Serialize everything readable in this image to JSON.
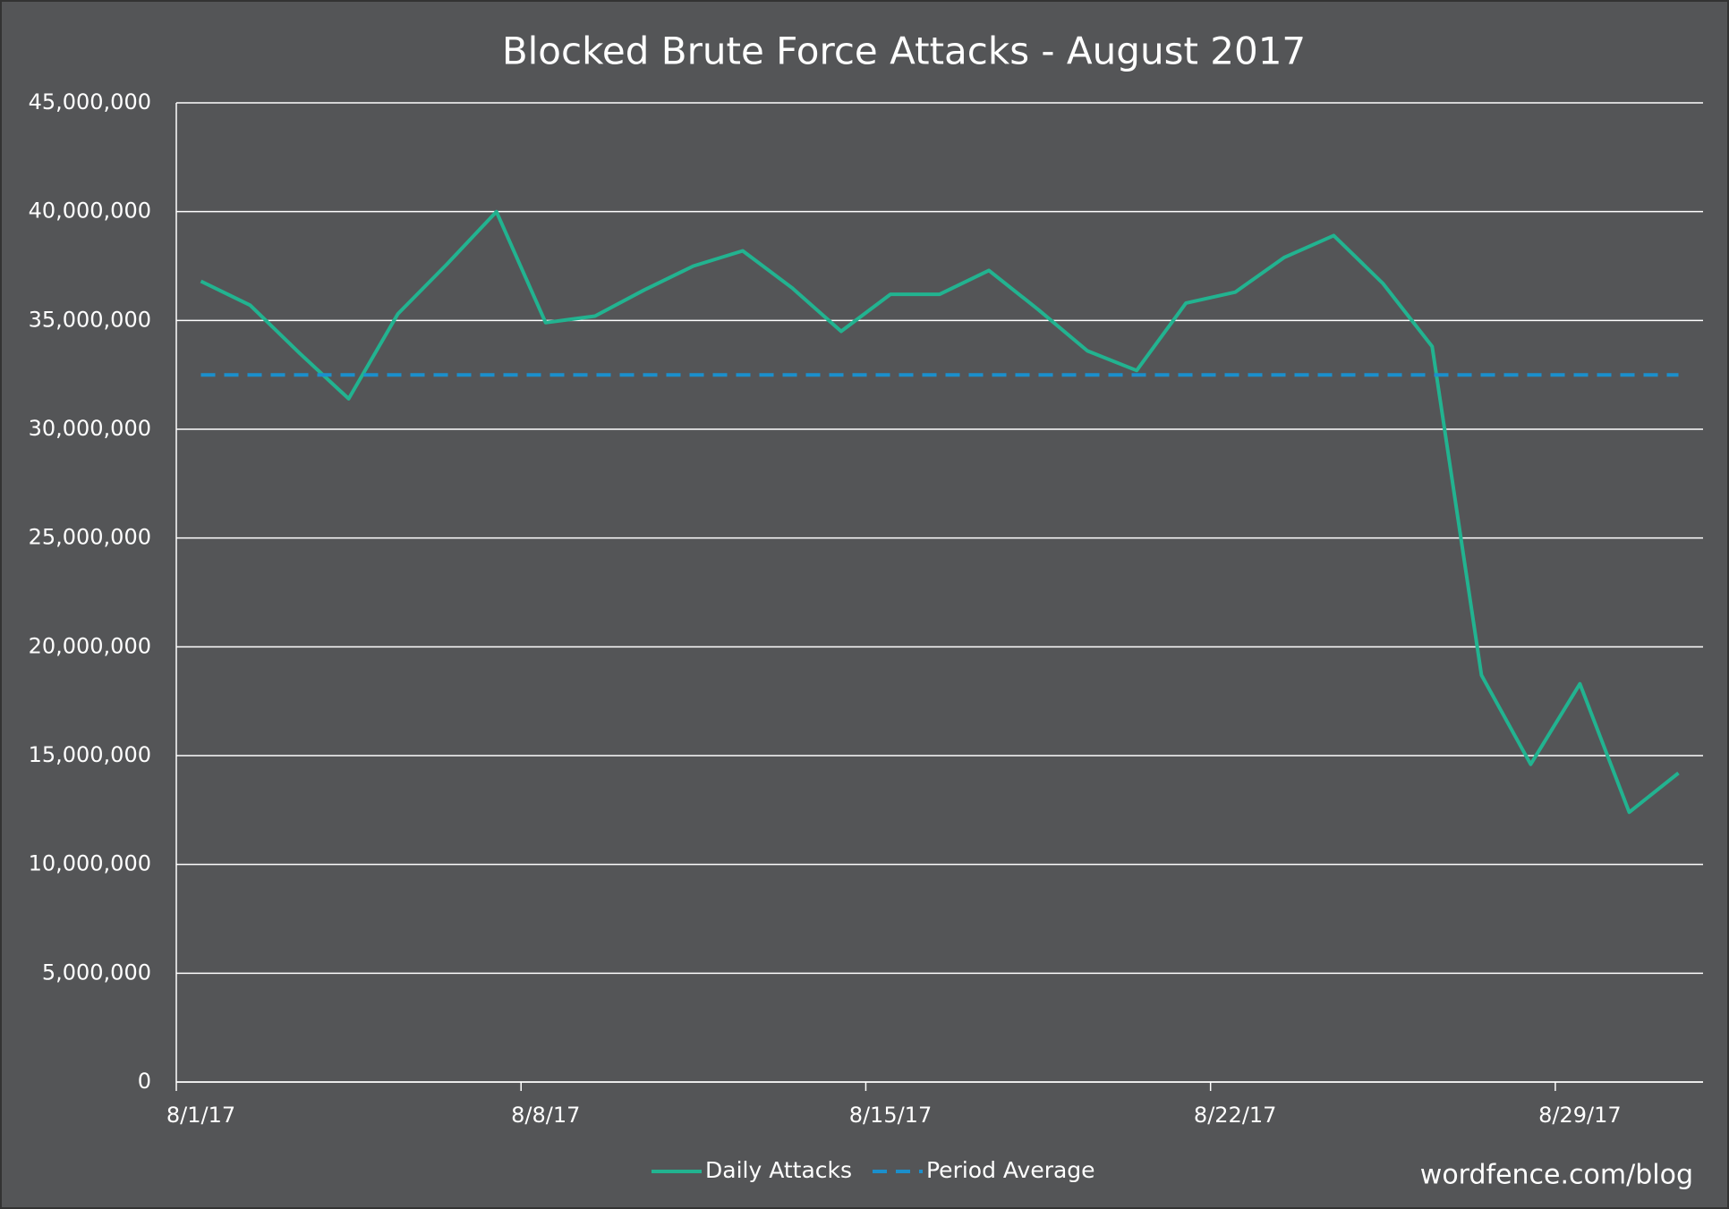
{
  "chart_data": {
    "type": "line",
    "title": "Blocked Brute Force Attacks - August 2017",
    "watermark": "wordfence.com/blog",
    "categories": [
      "8/1/17",
      null,
      null,
      null,
      null,
      null,
      null,
      "8/8/17",
      null,
      null,
      null,
      null,
      null,
      null,
      "8/15/17",
      null,
      null,
      null,
      null,
      null,
      null,
      "8/22/17",
      null,
      null,
      null,
      null,
      null,
      null,
      "8/29/17",
      null,
      null
    ],
    "series": [
      {
        "name": "Daily Attacks",
        "color": "#22b390",
        "dash": false,
        "values": [
          36800000,
          35700000,
          33500000,
          31400000,
          35300000,
          37600000,
          40000000,
          34900000,
          35200000,
          36400000,
          37500000,
          38200000,
          36500000,
          34500000,
          36200000,
          36200000,
          37300000,
          35500000,
          33600000,
          32700000,
          35800000,
          36300000,
          37900000,
          38900000,
          36700000,
          33800000,
          18700000,
          14600000,
          18300000,
          12400000,
          14200000
        ]
      },
      {
        "name": "Period Average",
        "color": "#1b8fcc",
        "dash": true,
        "values": [
          32500000,
          32500000,
          32500000,
          32500000,
          32500000,
          32500000,
          32500000,
          32500000,
          32500000,
          32500000,
          32500000,
          32500000,
          32500000,
          32500000,
          32500000,
          32500000,
          32500000,
          32500000,
          32500000,
          32500000,
          32500000,
          32500000,
          32500000,
          32500000,
          32500000,
          32500000,
          32500000,
          32500000,
          32500000,
          32500000,
          32500000
        ]
      }
    ],
    "ylim": [
      0,
      45000000
    ],
    "yticks": [
      0,
      {
        "value": 5000000,
        "label": "5,000,000"
      },
      {
        "value": 10000000,
        "label": "10,000,000"
      },
      {
        "value": 15000000,
        "label": "15,000,000"
      },
      {
        "value": 20000000,
        "label": "20,000,000"
      },
      {
        "value": 25000000,
        "label": "25,000,000"
      },
      {
        "value": 30000000,
        "label": "30,000,000"
      },
      {
        "value": 35000000,
        "label": "35,000,000"
      },
      {
        "value": 40000000,
        "label": "40,000,000"
      },
      {
        "value": 45000000,
        "label": "45,000,000"
      }
    ],
    "grid": true,
    "legend": "bottom"
  }
}
